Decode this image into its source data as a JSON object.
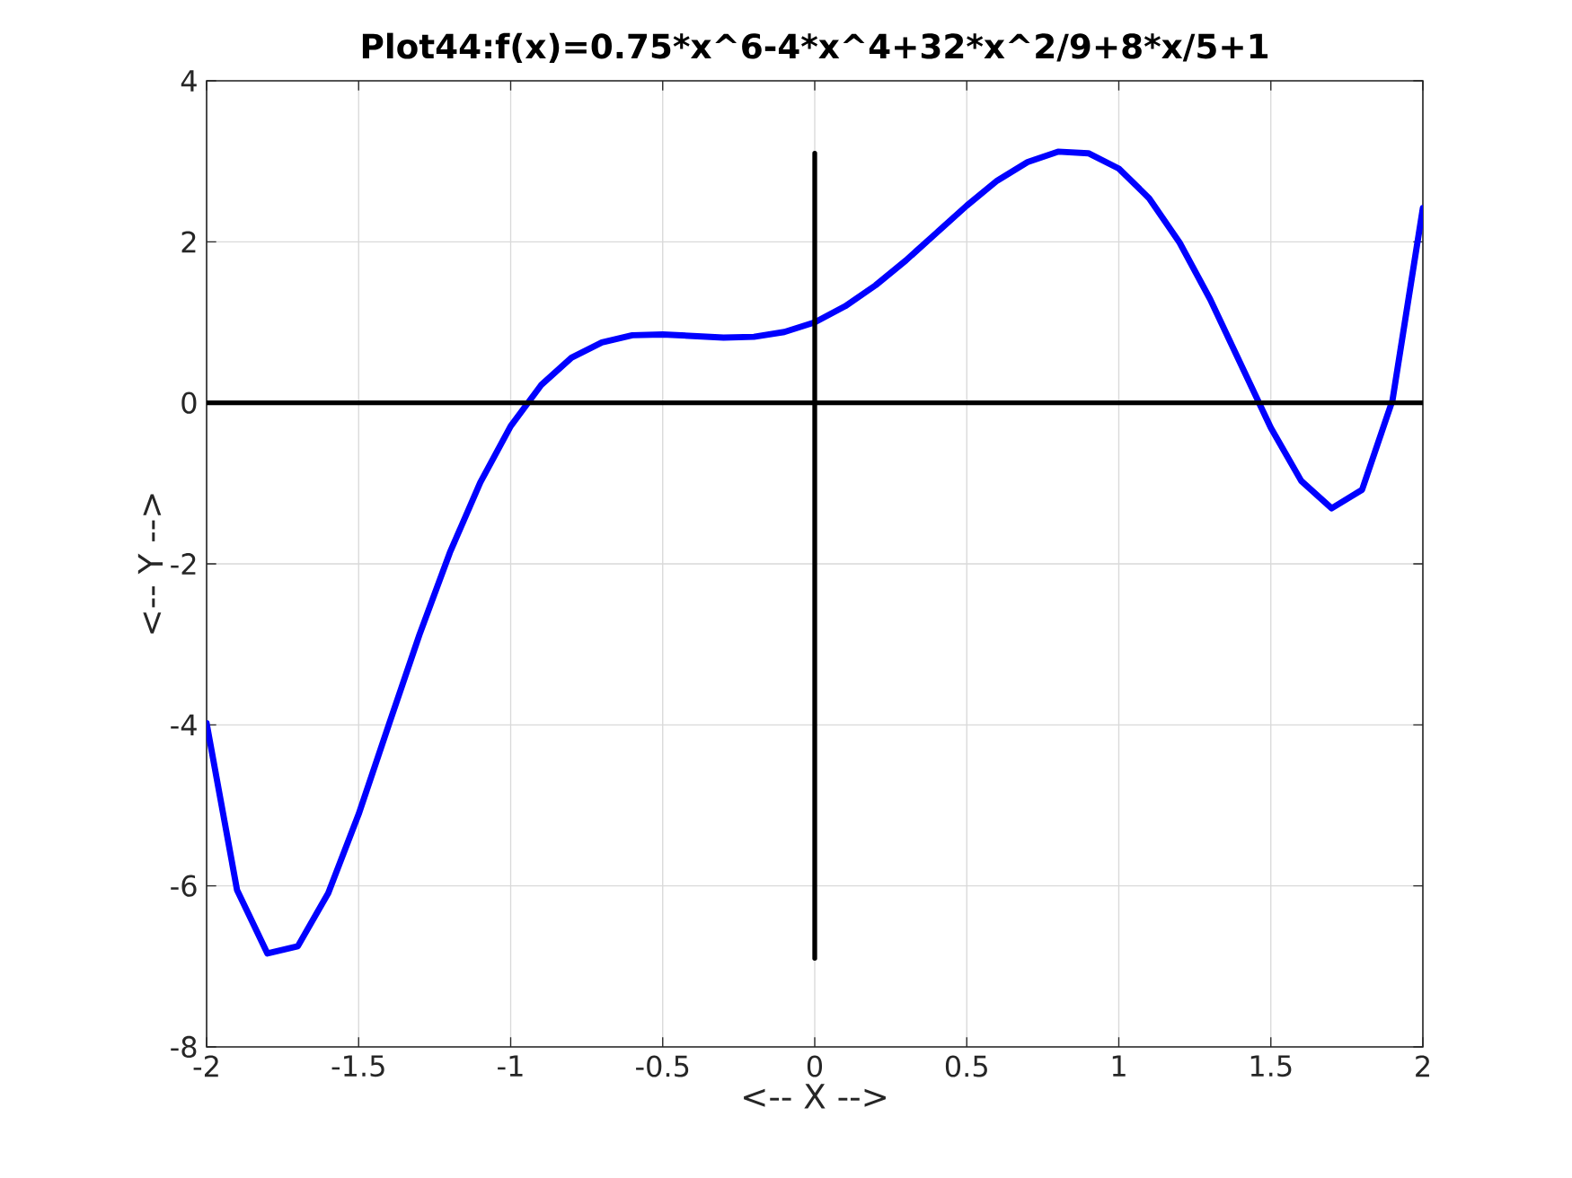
{
  "chart_data": {
    "type": "line",
    "title": "Plot44:f(x)=0.75*x^6-4*x^4+32*x^2/9+8*x/5+1",
    "xlabel": "<-- X -->",
    "ylabel": "<-- Y -->",
    "xlim": [
      -2,
      2
    ],
    "ylim": [
      -8,
      4
    ],
    "xticks": [
      -2,
      -1.5,
      -1,
      -0.5,
      0,
      0.5,
      1,
      1.5,
      2
    ],
    "yticks": [
      -8,
      -6,
      -4,
      -2,
      0,
      2,
      4
    ],
    "grid": true,
    "marker": "none",
    "line_style": "solid",
    "series": [
      {
        "color": "#0000ff",
        "x": [
          -2,
          -1.9,
          -1.8,
          -1.7,
          -1.6,
          -1.5,
          -1.4,
          -1.3,
          -1.2,
          -1.1,
          -1,
          -0.9,
          -0.8,
          -0.7,
          -0.6,
          -0.5,
          -0.4,
          -0.3,
          -0.2,
          -0.1,
          0,
          0.1,
          0.2,
          0.3,
          0.4,
          0.5,
          0.6,
          0.7,
          0.8,
          0.9,
          1,
          1.1,
          1.2,
          1.3,
          1.4,
          1.5,
          1.6,
          1.7,
          1.8,
          1.9,
          2
        ],
        "values": [
          -3.98,
          -6.05,
          -6.84,
          -6.75,
          -6.09,
          -5.11,
          -3.99,
          -2.88,
          -1.86,
          -0.99,
          -0.29,
          0.22,
          0.56,
          0.75,
          0.84,
          0.85,
          0.83,
          0.81,
          0.82,
          0.88,
          1.0,
          1.2,
          1.46,
          1.77,
          2.11,
          2.45,
          2.76,
          2.99,
          3.12,
          3.1,
          2.91,
          2.54,
          1.99,
          1.29,
          0.49,
          -0.31,
          -0.97,
          -1.31,
          -1.08,
          0.03,
          2.42
        ]
      },
      {
        "color": "#000000",
        "x": [
          -2,
          2
        ],
        "values": [
          0,
          0
        ]
      },
      {
        "color": "#000000",
        "x": [
          0,
          0
        ],
        "values": [
          -6.9,
          3.1
        ]
      }
    ]
  }
}
